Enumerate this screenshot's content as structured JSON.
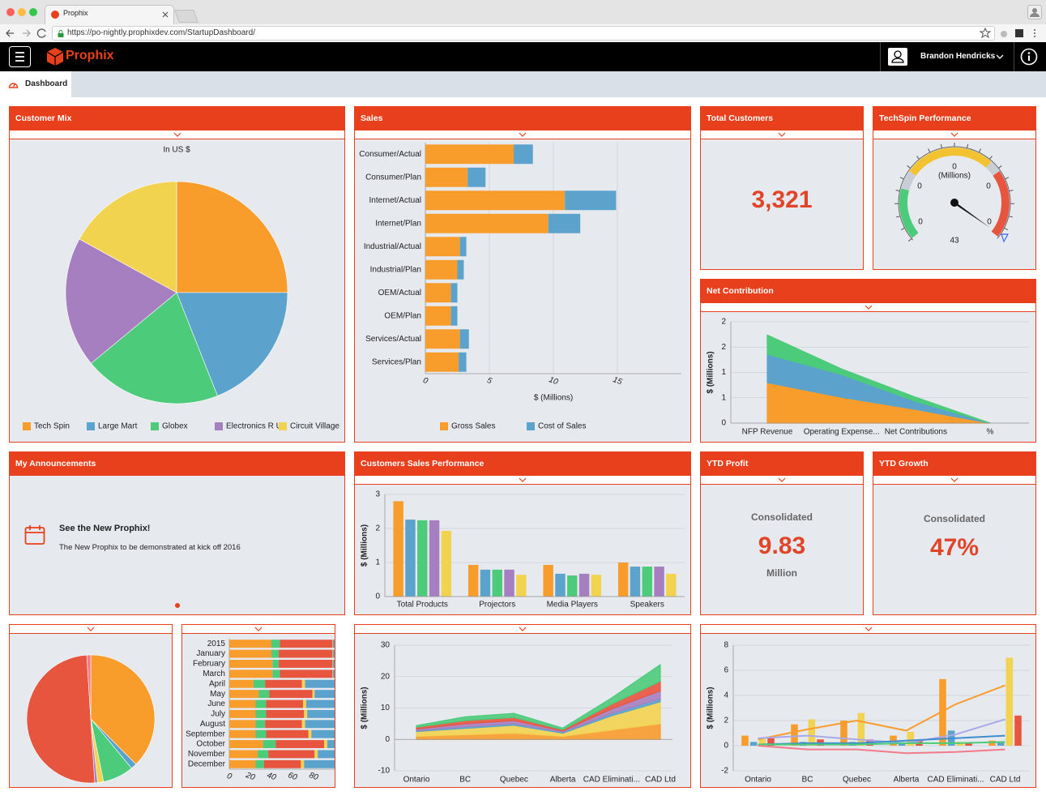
{
  "browser": {
    "tab_title": "Prophix",
    "url": "https://po-nightly.prophixdev.com/StartupDashboard/"
  },
  "app": {
    "logo": "Prophix",
    "user": "Brandon Hendricks",
    "tab": "Dashboard"
  },
  "widgets": {
    "total_customers": {
      "title": "Total Customers",
      "value": "3,321"
    },
    "techspin": {
      "title": "TechSpin Performance",
      "unit": "(Millions)",
      "labels": [
        "0",
        "0",
        "0",
        "0",
        "0"
      ],
      "value": "43"
    },
    "announcements": {
      "title": "My Announcements",
      "heading": "See the New Prophix!",
      "text": "The New Prophix to be demonstrated at kick off 2016"
    },
    "ytd_profit": {
      "title": "YTD Profit",
      "caption": "Consolidated",
      "value": "9.83",
      "unit": "Million"
    },
    "ytd_growth": {
      "title": "YTD Growth",
      "caption": "Consolidated",
      "value": "47%"
    }
  },
  "chart_data": [
    {
      "type": "pie",
      "title": "Customer Mix",
      "subtitle": "In US $",
      "categories": [
        "Tech Spin",
        "Large Mart",
        "Globex",
        "Electronics R Us",
        "Circuit Village"
      ],
      "values": [
        25,
        19,
        20,
        19,
        17
      ],
      "colors": [
        "#f89c2c",
        "#5ba3cc",
        "#4ccb7a",
        "#a67fc0",
        "#f2d34f"
      ],
      "legend": "bottom"
    },
    {
      "type": "bar",
      "orientation": "horizontal",
      "stacked": true,
      "title": "Sales",
      "xlabel": "$ (Millions)",
      "categories": [
        "Consumer/Actual",
        "Consumer/Plan",
        "Internet/Actual",
        "Internet/Plan",
        "Industrial/Actual",
        "Industrial/Plan",
        "OEM/Actual",
        "OEM/Plan",
        "Services/Actual",
        "Services/Plan"
      ],
      "series": [
        {
          "name": "Gross Sales",
          "color": "#f89c2c",
          "values": [
            6.9,
            3.3,
            10.9,
            9.6,
            2.7,
            2.5,
            2.0,
            2.0,
            2.7,
            2.6
          ]
        },
        {
          "name": "Cost of Sales",
          "color": "#5ba3cc",
          "values": [
            1.5,
            1.4,
            4.0,
            2.5,
            0.5,
            0.5,
            0.5,
            0.5,
            0.7,
            0.6
          ]
        }
      ],
      "xlim": [
        0,
        20
      ],
      "xticks": [
        0,
        5,
        10,
        15
      ],
      "grid": true,
      "legend": "bottom"
    },
    {
      "type": "area",
      "stacked": true,
      "title": "Net Contribution",
      "ylabel": "$ (Millions)",
      "categories": [
        "NFP Revenue",
        "Operating Expense...",
        "Net Contributions",
        "%"
      ],
      "series": [
        {
          "color": "#f89c2c",
          "values": [
            0.8,
            0.51,
            0.27,
            0
          ]
        },
        {
          "color": "#5ba3cc",
          "values": [
            0.56,
            0.45,
            0.16,
            0
          ]
        },
        {
          "color": "#4ccb7a",
          "values": [
            0.38,
            0.11,
            0.08,
            0
          ]
        }
      ],
      "ylim": [
        0,
        2
      ],
      "yticks": [
        0,
        {
          "value": 0.5,
          "label": "1"
        },
        1,
        {
          "value": 1.5,
          "label": "2"
        },
        2
      ],
      "grid": true
    },
    {
      "type": "bar",
      "orientation": "vertical",
      "title": "Customers Sales Performance",
      "ylabel": "$ (Millions)",
      "categories": [
        "Total Products",
        "Projectors",
        "Media Players",
        "Speakers"
      ],
      "series": [
        {
          "color": "#f89c2c",
          "values": [
            2.8,
            0.93,
            0.93,
            1.0
          ]
        },
        {
          "color": "#5ba3cc",
          "values": [
            2.26,
            0.79,
            0.67,
            0.88
          ]
        },
        {
          "color": "#4ccb7a",
          "values": [
            2.24,
            0.79,
            0.62,
            0.88
          ]
        },
        {
          "color": "#a67fc0",
          "values": [
            2.24,
            0.79,
            0.67,
            0.88
          ]
        },
        {
          "color": "#f2d34f",
          "values": [
            1.93,
            0.64,
            0.64,
            0.67
          ]
        }
      ],
      "ylim": [
        0,
        3
      ],
      "yticks": [
        0,
        1,
        2,
        3
      ],
      "grid": true
    },
    {
      "type": "pie",
      "values": [
        37.5,
        1.5,
        7.8,
        1.5,
        0.7,
        50,
        1
      ],
      "colors": [
        "#f89c2c",
        "#5ba3cc",
        "#4ccb7a",
        "#f2d34f",
        "#a67fc0",
        "#e8553e",
        "#f27a8a"
      ]
    },
    {
      "type": "bar",
      "orientation": "horizontal",
      "stacked": true,
      "categories": [
        "2015",
        "January",
        "February",
        "March",
        "April",
        "May",
        "June",
        "July",
        "August",
        "September",
        "October",
        "November",
        "December"
      ],
      "series": [
        {
          "color": "#f89c2c",
          "values": [
            40,
            40,
            41,
            41,
            23,
            28,
            25,
            25,
            25,
            25,
            32,
            27,
            25
          ]
        },
        {
          "color": "#4ccb7a",
          "values": [
            8,
            7,
            6,
            7,
            11,
            10,
            10,
            10,
            9,
            10,
            12,
            10,
            8
          ]
        },
        {
          "color": "#e8553e",
          "values": [
            50,
            51,
            51,
            50,
            35,
            41,
            35,
            36,
            35,
            40,
            46,
            44,
            35
          ]
        },
        {
          "color": "#f2d34f",
          "values": [
            0.5,
            0.5,
            0.5,
            0.5,
            3,
            2,
            3,
            3,
            3,
            3,
            3,
            3,
            3
          ]
        },
        {
          "color": "#5ba3cc",
          "values": [
            1.5,
            1.5,
            1.5,
            1.5,
            28,
            19,
            27,
            26,
            28,
            22,
            7,
            16,
            29
          ]
        }
      ],
      "xlim": [
        0,
        100
      ],
      "xticks": [
        0,
        20,
        40,
        60,
        80
      ],
      "grid": false
    },
    {
      "type": "area",
      "stacked": true,
      "ylabel": "$ (Millions)",
      "categories": [
        "Ontario",
        "BC",
        "Quebec",
        "Alberta",
        "CAD Eliminati...",
        "CAD Ltd"
      ],
      "series": [
        {
          "color": "#f89c2c",
          "values": [
            1,
            1.5,
            2,
            1,
            3,
            5
          ]
        },
        {
          "color": "#f2d34f",
          "values": [
            1.5,
            2,
            2.5,
            1,
            4.5,
            7
          ]
        },
        {
          "color": "#5ba3cc",
          "values": [
            0.3,
            0.5,
            0.5,
            0.3,
            0.7,
            1
          ]
        },
        {
          "color": "#a67fc0",
          "values": [
            0.5,
            1,
            1,
            0.4,
            1.5,
            2.5
          ]
        },
        {
          "color": "#e8553e",
          "values": [
            0.6,
            1,
            1,
            0.4,
            1.5,
            3
          ]
        },
        {
          "color": "#4ccb7a",
          "values": [
            0.5,
            1.2,
            1.3,
            0.5,
            2,
            5.3
          ]
        }
      ],
      "ylim": [
        -10,
        30
      ],
      "yticks": [
        -10,
        0,
        10,
        20,
        30
      ],
      "grid": true
    },
    {
      "type": "combo",
      "ylabel": "$ (Millions)",
      "categories": [
        "Ontario",
        "BC",
        "Quebec",
        "Alberta",
        "CAD Eliminati...",
        "CAD Ltd"
      ],
      "series": [
        {
          "kind": "bar",
          "color": "#f89c2c",
          "values": [
            0.8,
            1.7,
            2.0,
            0.8,
            5.3,
            0.4
          ]
        },
        {
          "kind": "bar",
          "color": "#5ba3cc",
          "values": [
            0.3,
            0.3,
            0.3,
            0.2,
            1.2,
            0.3
          ]
        },
        {
          "kind": "bar",
          "color": "#f2d34f",
          "values": [
            0.5,
            2.1,
            2.6,
            1.1,
            0.3,
            7.0
          ]
        },
        {
          "kind": "bar",
          "color": "#e8553e",
          "values": [
            0.6,
            0.5,
            0.5,
            0.4,
            0.2,
            2.4
          ]
        },
        {
          "kind": "line",
          "color": "#f89c2c",
          "values": [
            0.5,
            1.3,
            2.0,
            1.2,
            3.3,
            4.8
          ]
        },
        {
          "kind": "line",
          "color": "#a9a9e8",
          "values": [
            0.6,
            0.8,
            0.5,
            0.2,
            0.9,
            2.1
          ]
        },
        {
          "kind": "line",
          "color": "#3f8fd0",
          "values": [
            0.1,
            0.2,
            0.2,
            0.4,
            0.6,
            0.8
          ]
        },
        {
          "kind": "line",
          "color": "#4ccb7a",
          "values": [
            0.1,
            0.1,
            0.1,
            0.2,
            0.2,
            0.3
          ]
        },
        {
          "kind": "line",
          "color": "#f27a8a",
          "values": [
            0,
            -0.3,
            -0.3,
            -0.6,
            -0.5,
            -0.3
          ]
        }
      ],
      "ylim": [
        -2,
        8
      ],
      "yticks": [
        -2,
        0,
        2,
        4,
        6,
        8
      ],
      "grid": true
    }
  ]
}
